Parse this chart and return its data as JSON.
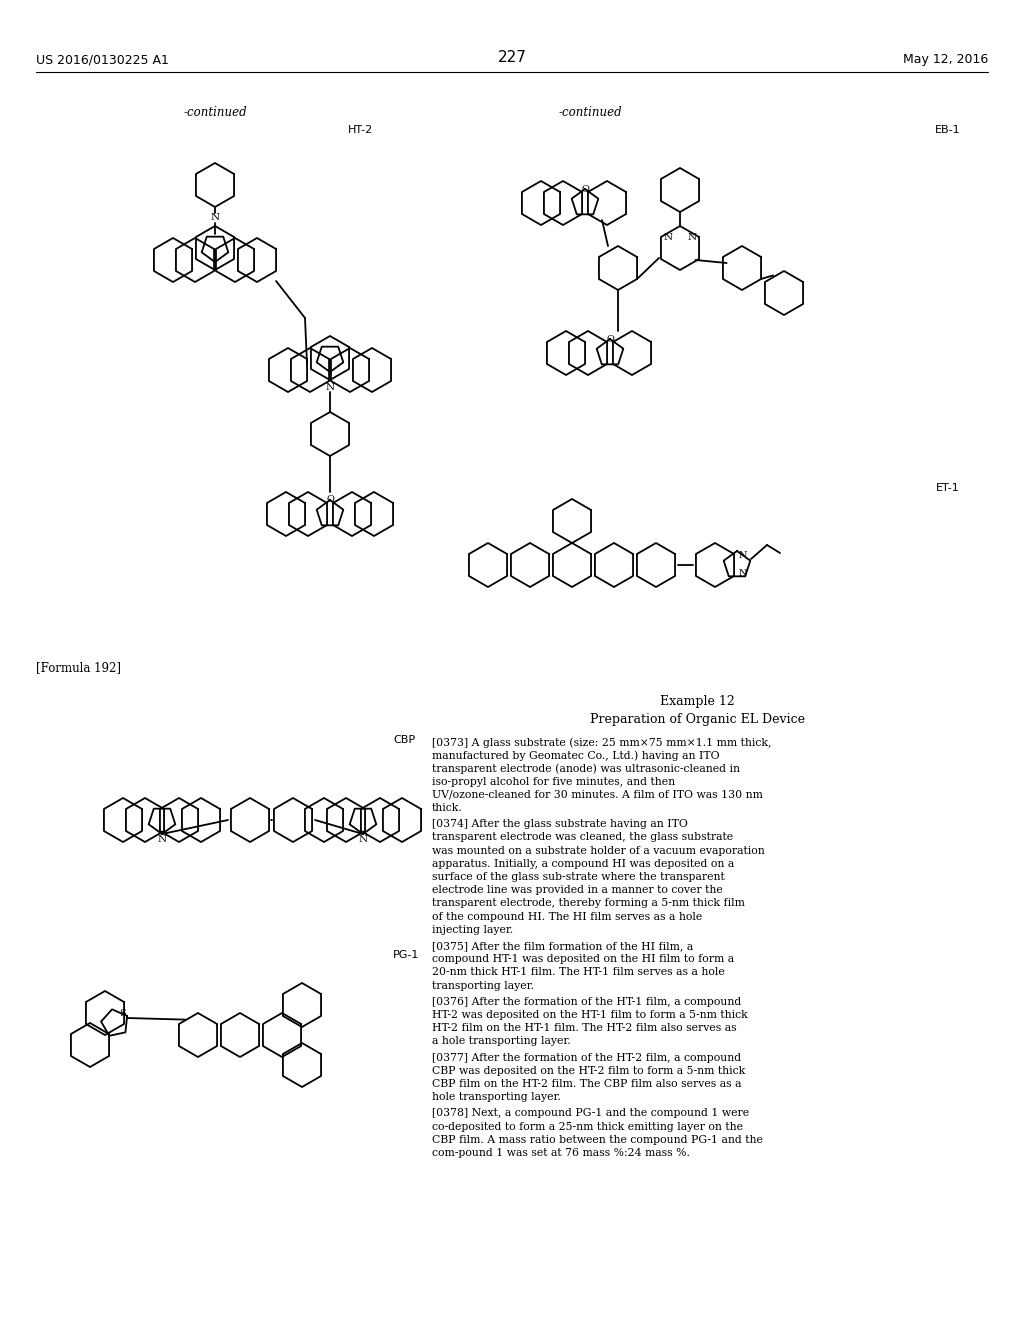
{
  "page_number": "227",
  "header_left": "US 2016/0130225 A1",
  "header_right": "May 12, 2016",
  "continued_left": "-continued",
  "continued_right": "-continued",
  "label_ht2": "HT-2",
  "label_eb1": "EB-1",
  "label_et1": "ET-1",
  "label_formula192": "[Formula 192]",
  "label_cbp": "CBP",
  "label_pg1": "PG-1",
  "example_title": "Example 12",
  "example_subtitle": "Preparation of Organic EL Device",
  "para_0373": "[0373]    A glass substrate (size: 25 mm×75 mm×1.1 mm thick, manufactured by Geomatec Co., Ltd.) having an ITO transparent electrode (anode) was ultrasonic-cleaned in iso-propyl alcohol for five minutes, and then UV/ozone-cleaned for 30 minutes. A film of ITO was 130 nm thick.",
  "para_0374": "[0374]    After the glass substrate having an ITO transparent electrode was cleaned, the glass substrate was mounted on a substrate holder of a vacuum evaporation apparatus. Initially, a compound HI was deposited on a surface of the glass sub-strate where the transparent electrode line was provided in a manner to cover the transparent electrode, thereby forming a 5-nm thick film of the compound HI. The HI film serves as a hole injecting layer.",
  "para_0375": "[0375]    After the film formation of the HI film, a compound HT-1 was deposited on the HI film to form a 20-nm thick HT-1 film. The HT-1 film serves as a hole transporting layer.",
  "para_0376": "[0376]    After the formation of the HT-1 film, a compound HT-2 was deposited on the HT-1 film to form a 5-nm thick HT-2 film on the HT-1 film. The HT-2 film also serves as a hole transporting layer.",
  "para_0377": "[0377]    After the formation of the HT-2 film, a compound CBP was deposited on the HT-2 film to form a 5-nm thick CBP film on the HT-2 film. The CBP film also serves as a hole transporting layer.",
  "para_0378": "[0378]    Next, a compound PG-1 and the compound 1 were co-deposited to form a 25-nm thick emitting layer on the CBP film. A mass ratio between the compound PG-1 and the com-pound 1 was set at 76 mass %:24 mass %.",
  "bg_color": "#ffffff",
  "text_color": "#000000"
}
